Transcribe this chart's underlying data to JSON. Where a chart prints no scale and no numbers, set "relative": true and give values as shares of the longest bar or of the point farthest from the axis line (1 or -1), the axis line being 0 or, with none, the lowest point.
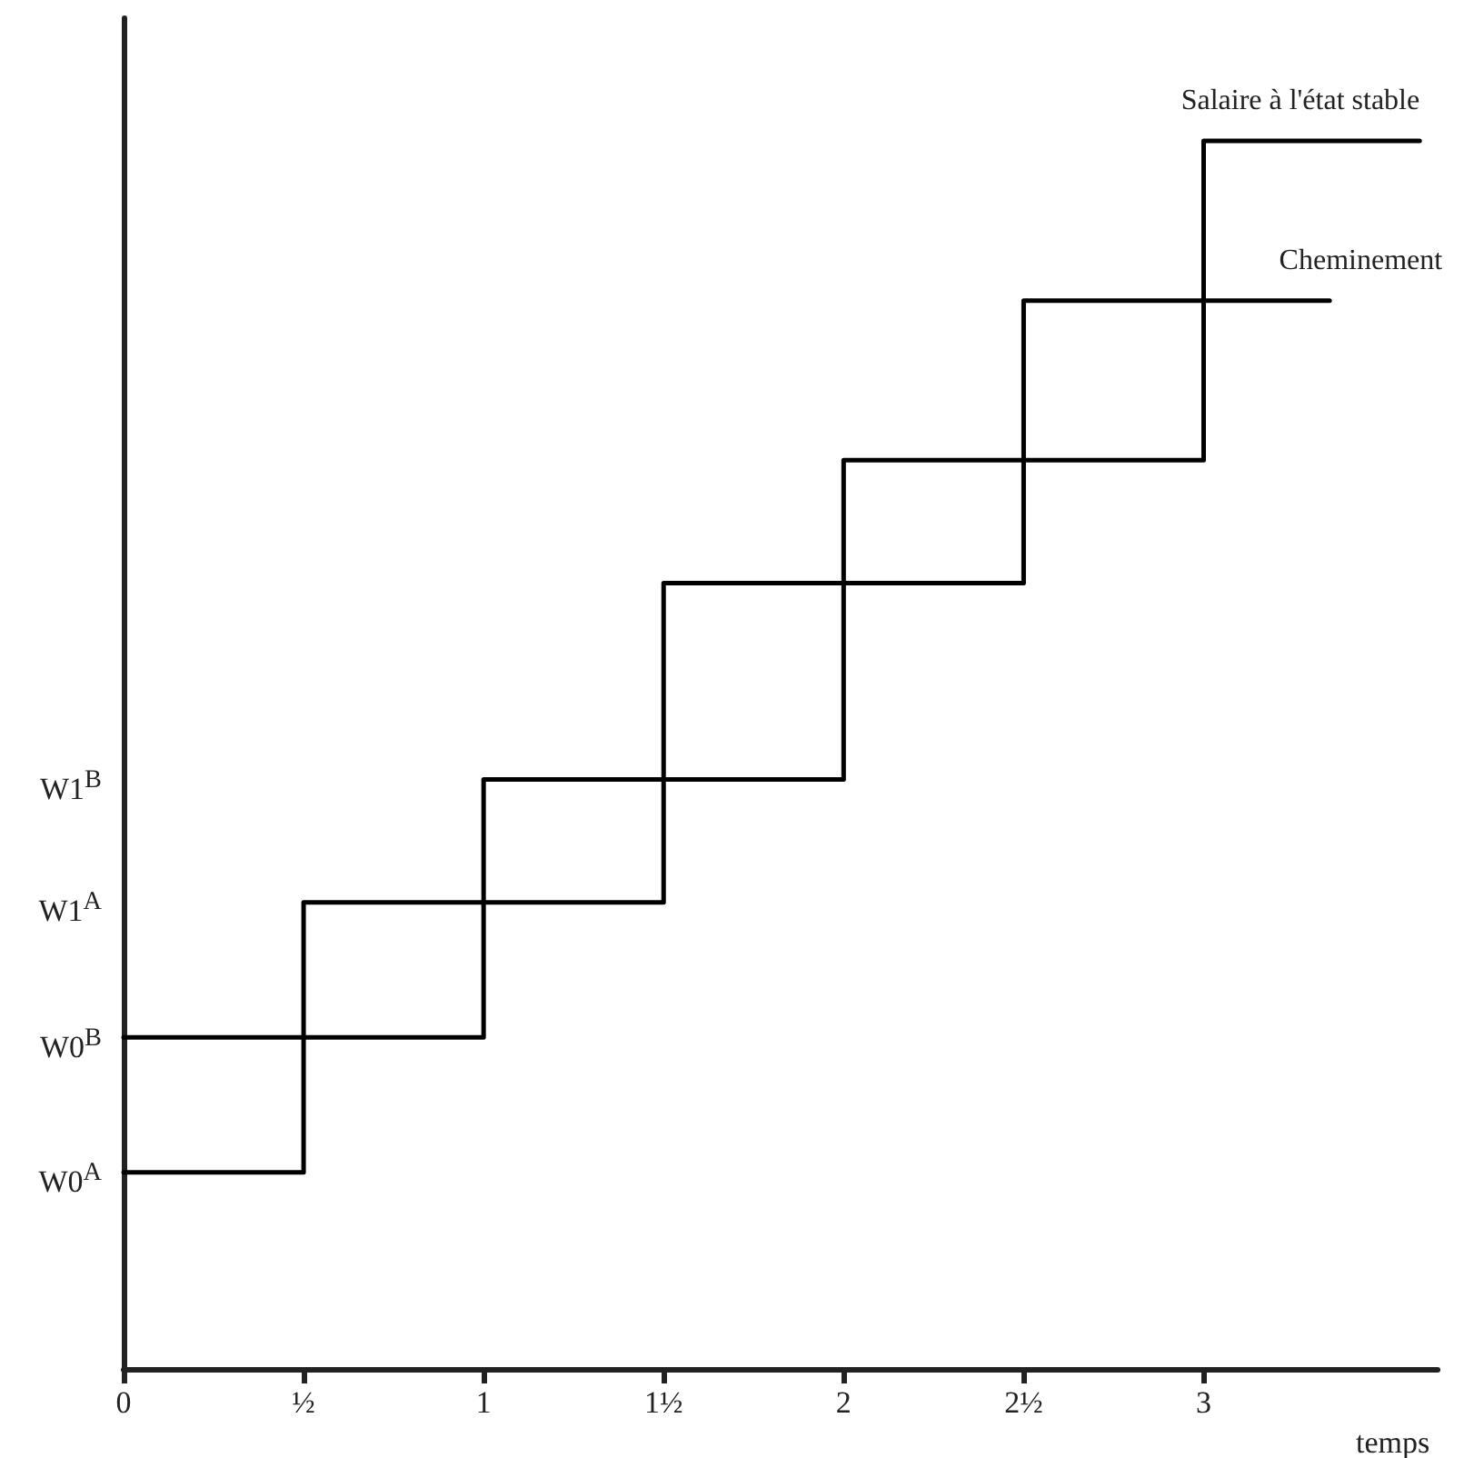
{
  "chart_data": {
    "type": "step",
    "relative": true,
    "xlabel": "temps",
    "xlim": [
      0,
      3.65
    ],
    "xticks": [
      0,
      {
        "value": 0.5,
        "label": "½"
      },
      1,
      {
        "value": 1.5,
        "label": "1½"
      },
      2,
      {
        "value": 2.5,
        "label": "2½"
      },
      3
    ],
    "annotations": [
      "W0$^{A}$",
      "W0$^{B}$",
      "W1$^{A}$",
      "W1$^{B}$"
    ],
    "series": [
      {
        "name": "Salaire à l'état stable",
        "color": "#000000",
        "x": [
          0,
          1,
          2,
          3,
          3.6
        ],
        "values": [
          0.27,
          0.48,
          0.74,
          1,
          1
        ]
      },
      {
        "name": "Cheminement",
        "color": "#000000",
        "x": [
          0,
          0.5,
          1.5,
          2.5,
          3.35
        ],
        "values": [
          0.16,
          0.38,
          0.64,
          0.87,
          0.87
        ]
      }
    ],
    "grid": false,
    "legend": false,
    "marker": "none",
    "line_style": "solid"
  }
}
